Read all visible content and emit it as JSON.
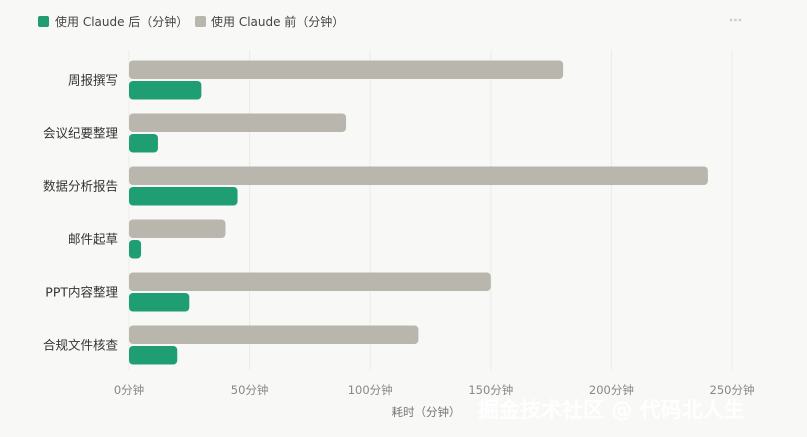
{
  "chart_data": {
    "type": "bar",
    "orientation": "horizontal",
    "categories": [
      "周报撰写",
      "会议纪要整理",
      "数据分析报告",
      "邮件起草",
      "PPT内容整理",
      "合规文件核查"
    ],
    "series": [
      {
        "name": "使用 Claude 前（分钟）",
        "values": [
          180,
          90,
          240,
          40,
          150,
          120
        ]
      },
      {
        "name": "使用 Claude 后（分钟）",
        "values": [
          30,
          12,
          45,
          5,
          25,
          20
        ]
      }
    ],
    "xlabel": "耗时（分钟）",
    "xlim": [
      0,
      250
    ],
    "xticks": [
      0,
      50,
      100,
      150,
      200,
      250
    ],
    "xtick_labels": [
      "0分钟",
      "50分钟",
      "100分钟",
      "150分钟",
      "200分钟",
      "250分钟"
    ],
    "legend": [
      {
        "label": "使用 Claude 后（分钟）",
        "color": "#1f9e74"
      },
      {
        "label": "使用 Claude 前（分钟）",
        "color": "#b9b6ad"
      }
    ],
    "legend_position": "top-left",
    "grid": true
  },
  "colors": {
    "after": "#1f9e74",
    "before": "#b9b6ad",
    "grid": "#ebebe8"
  },
  "watermark": "掘金技术社区 @ 代码北人生"
}
